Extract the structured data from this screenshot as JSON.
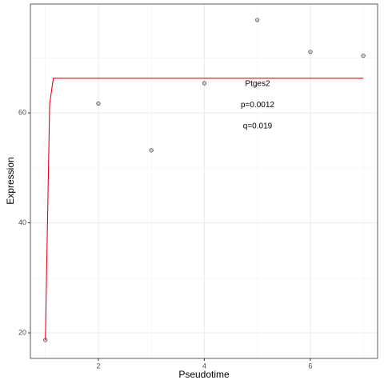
{
  "chart_data": {
    "type": "scatter",
    "x_label": "Pseudotime",
    "y_label": "Expression",
    "annotations": [
      "Ptges2",
      "p=0.0012",
      "q=0.019"
    ],
    "points": {
      "x": [
        1,
        2,
        3,
        4,
        5,
        6,
        7
      ],
      "values": [
        18.7,
        61.7,
        53.2,
        65.4,
        76.9,
        71.1,
        70.4
      ],
      "color": "#999999"
    },
    "fit": {
      "x": [
        1,
        1.08,
        1.15,
        7
      ],
      "values": [
        18.7,
        61.6,
        66.3,
        66.3
      ],
      "color": "#e8001c"
    },
    "xlim": [
      0.717,
      7.27
    ],
    "ylim": [
      15.35,
      79.8
    ],
    "xticks": [
      2,
      4,
      6
    ],
    "yticks": [
      20,
      40,
      60
    ],
    "xminor": [
      1,
      3,
      5,
      7
    ],
    "yminor": [
      30,
      50,
      70
    ],
    "grid": true
  }
}
